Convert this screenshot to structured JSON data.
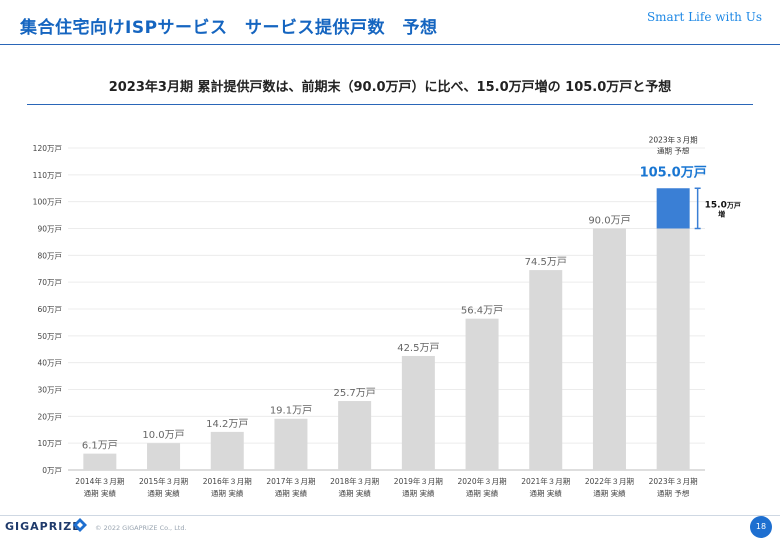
{
  "header": {
    "title": "集合住宅向けISPサービス　サービス提供戸数　予想",
    "brand": "Smart Life with Us"
  },
  "subtitle": "2023年3月期 累計提供戸数は、前期末（90.0万戸）に比べ、15.0万戸増の 105.0万戸と予想",
  "footer": {
    "logo": "GIGAPRIZE",
    "copyright": "© 2022 GIGAPRIZE Co., Ltd.",
    "page_number": "18"
  },
  "colors": {
    "bar": "#d9d9d9",
    "highlight": "#3a7fd5",
    "highlight_text": "#1976d2",
    "axis_text": "#444444"
  },
  "chart_data": {
    "type": "bar",
    "categories": [
      [
        "2014年３月期",
        "通期 実績"
      ],
      [
        "2015年３月期",
        "通期 実績"
      ],
      [
        "2016年３月期",
        "通期 実績"
      ],
      [
        "2017年３月期",
        "通期 実績"
      ],
      [
        "2018年３月期",
        "通期 実績"
      ],
      [
        "2019年３月期",
        "通期 実績"
      ],
      [
        "2020年３月期",
        "通期 実績"
      ],
      [
        "2021年３月期",
        "通期 実績"
      ],
      [
        "2022年３月期",
        "通期 実績"
      ],
      [
        "2023年３月期",
        "通期 予想"
      ]
    ],
    "values": [
      6.1,
      10.0,
      14.2,
      19.1,
      25.7,
      42.5,
      56.4,
      74.5,
      90.0,
      105.0
    ],
    "value_labels": [
      "6.1万戸",
      "10.0万戸",
      "14.2万戸",
      "19.1万戸",
      "25.7万戸",
      "42.5万戸",
      "56.4万戸",
      "74.5万戸",
      "90.0万戸",
      "105.0万戸"
    ],
    "forecast_base": 90.0,
    "forecast_increase": 15.0,
    "forecast_header": [
      "2023年３月期",
      "通期 予想"
    ],
    "increase_label": "15.0",
    "increase_unit": "万戸",
    "increase_suffix": "増",
    "y_ticks": [
      0,
      10,
      20,
      30,
      40,
      50,
      60,
      70,
      80,
      90,
      100,
      110,
      120
    ],
    "y_tick_labels": [
      "0万戸",
      "10万戸",
      "20万戸",
      "30万戸",
      "40万戸",
      "50万戸",
      "60万戸",
      "70万戸",
      "80万戸",
      "90万戸",
      "100万戸",
      "110万戸",
      "120万戸"
    ],
    "ylim": [
      0,
      120
    ],
    "grid": true
  }
}
